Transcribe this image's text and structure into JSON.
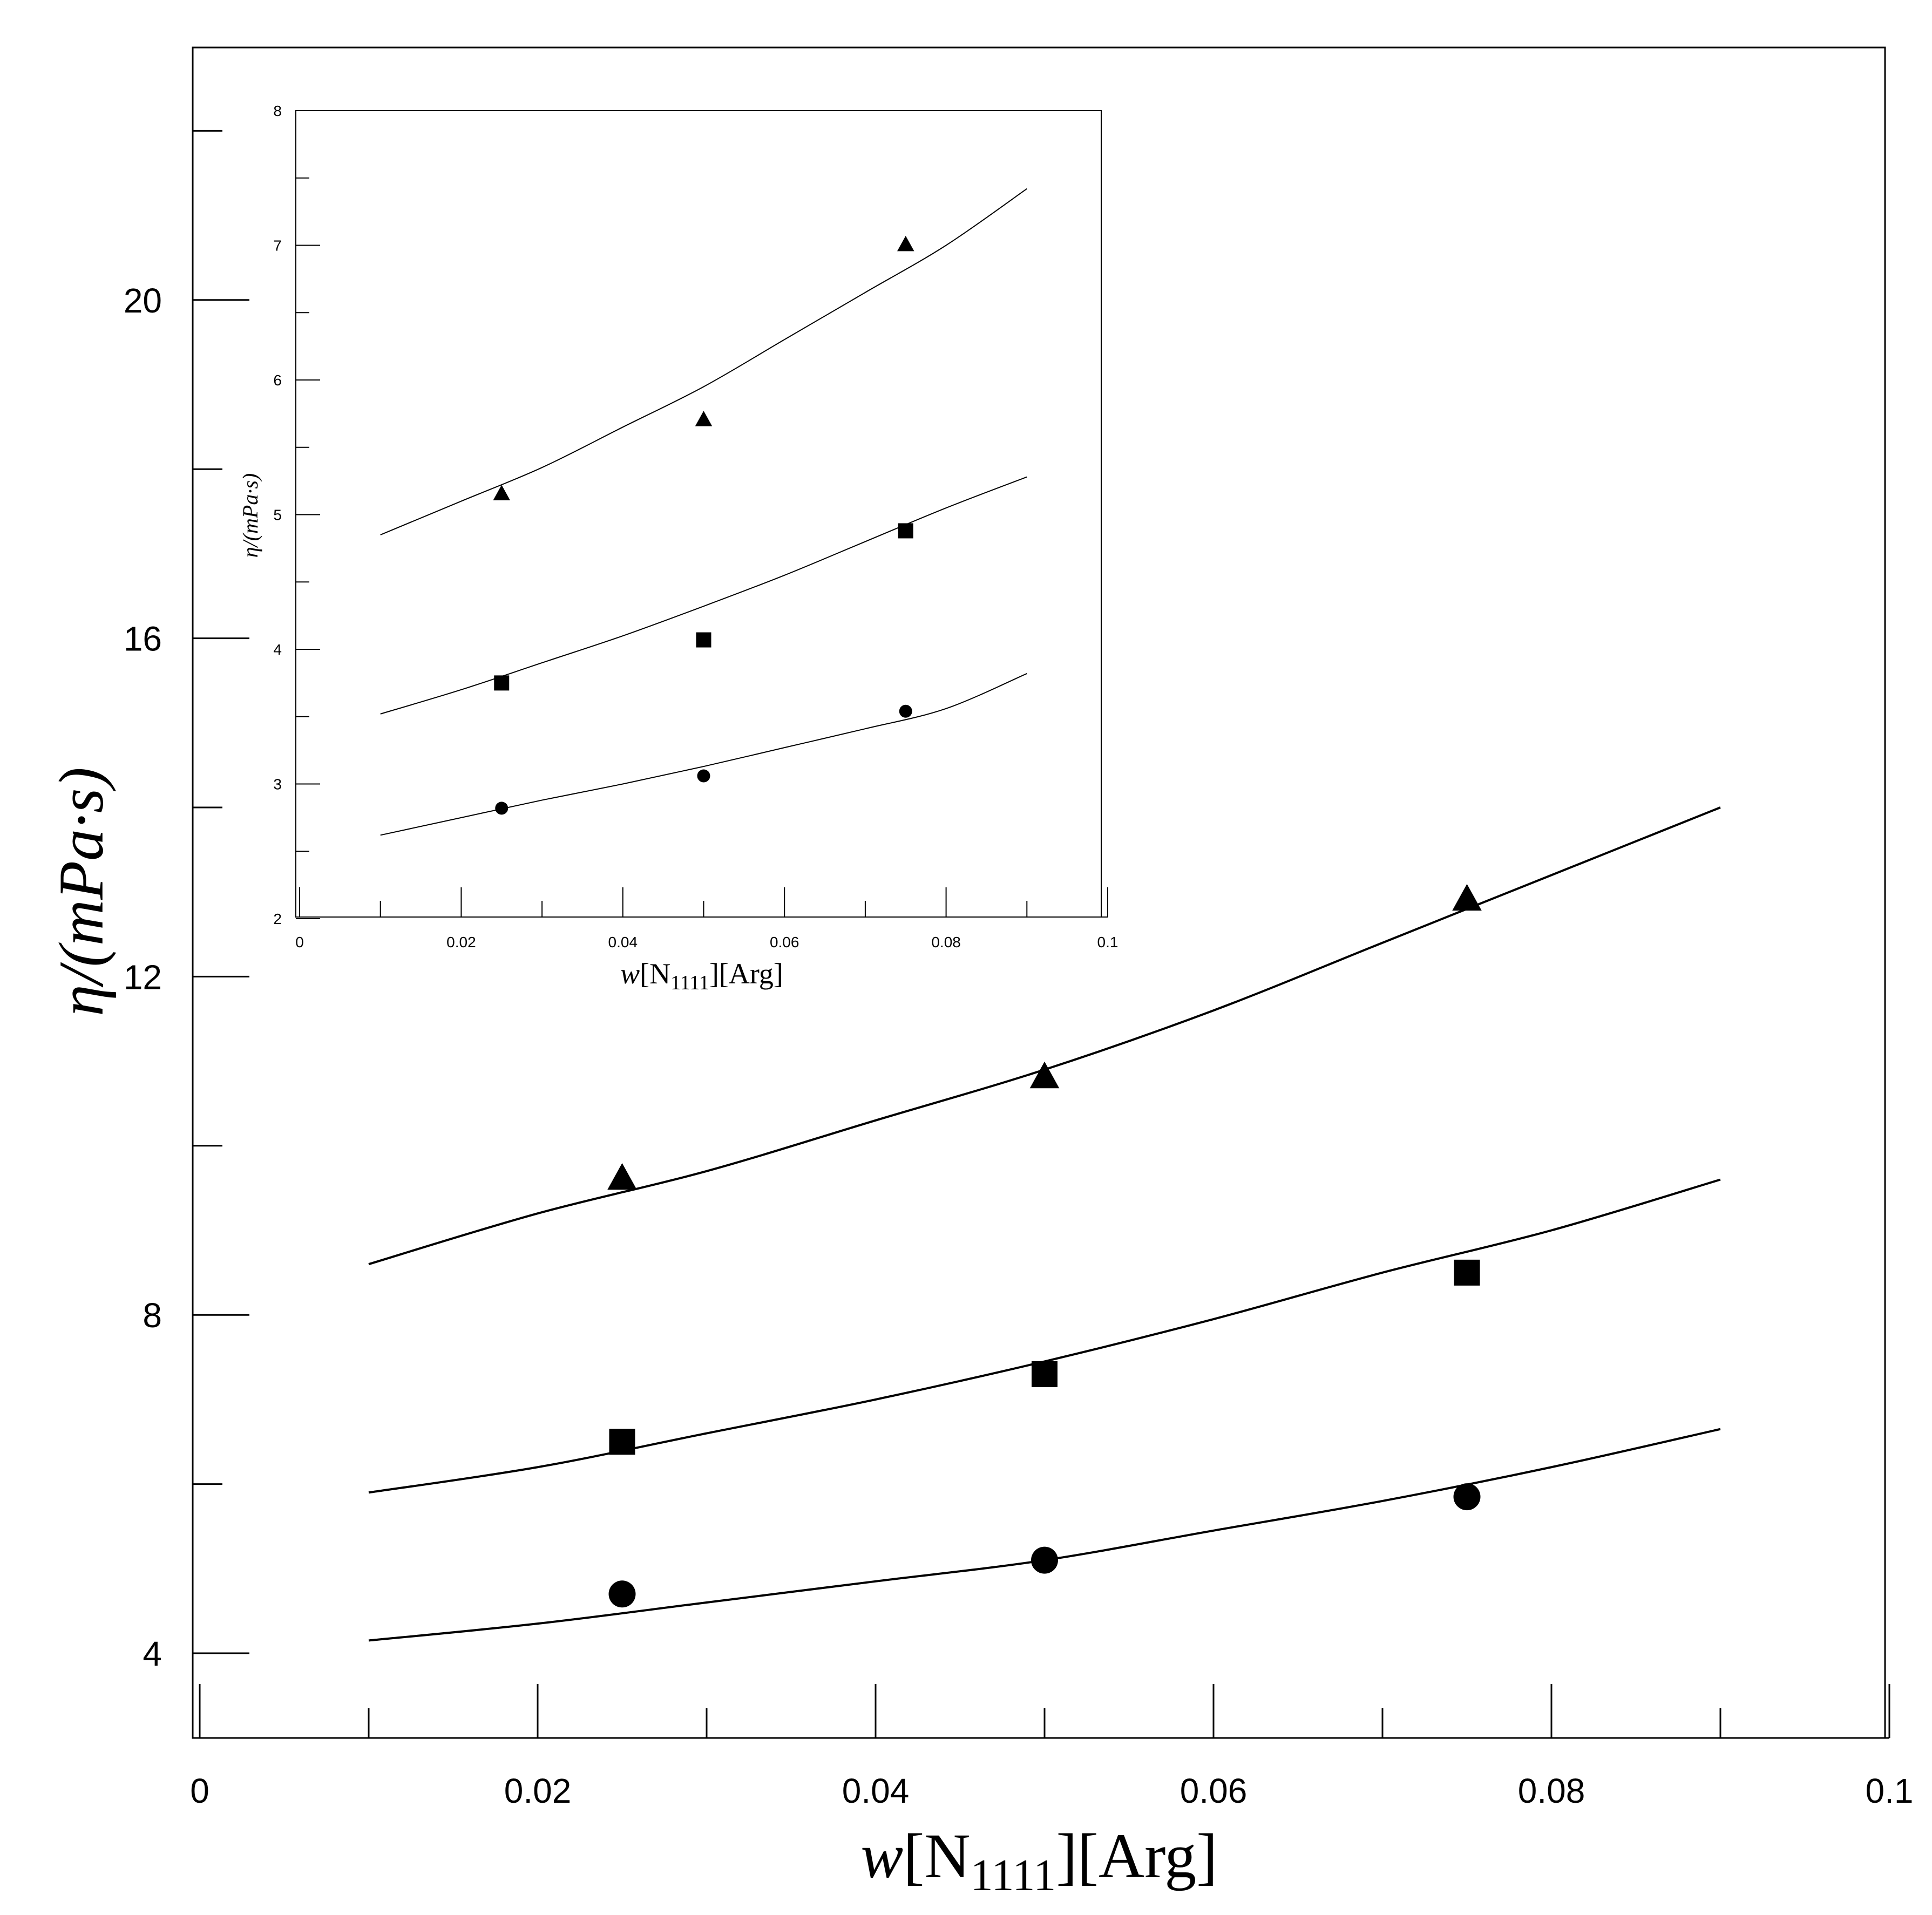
{
  "chart_data": [
    {
      "id": "main",
      "type": "scatter",
      "xlabel": {
        "w": "w",
        "bracket1_open": "[N",
        "sub": "1111",
        "bracket1_close": "]",
        "rest": "[Arg]"
      },
      "ylabel": {
        "eta": "η",
        "rest": "/(",
        "m": "m",
        "Pa": "Pa",
        "dot": "·",
        "s": "s",
        "close": ")"
      },
      "xlim": [
        0,
        0.1
      ],
      "ylim": [
        3,
        23
      ],
      "x_ticks": [
        0,
        0.02,
        0.04,
        0.06,
        0.08,
        0.1
      ],
      "x_tick_labels": [
        "0",
        "0.02",
        "0.04",
        "0.06",
        "0.08",
        "0.1"
      ],
      "x_minor_ticks": [
        0.01,
        0.03,
        0.05,
        0.07,
        0.09
      ],
      "y_ticks": [
        4,
        8,
        12,
        16,
        20
      ],
      "y_tick_labels": [
        "4",
        "8",
        "12",
        "16",
        "20"
      ],
      "y_minor_ticks": [
        6,
        10,
        14,
        18,
        22
      ],
      "grid": false,
      "legend": "none",
      "series": [
        {
          "marker": "triangle",
          "x": [
            0.025,
            0.05,
            0.075
          ],
          "y": [
            9.6,
            10.8,
            12.9
          ],
          "fit": {
            "x": [
              0.01,
              0.02,
              0.03,
              0.04,
              0.05,
              0.06,
              0.07,
              0.08,
              0.09
            ],
            "y": [
              8.6,
              9.2,
              9.7,
              10.3,
              10.9,
              11.6,
              12.4,
              13.2,
              14.0
            ]
          }
        },
        {
          "marker": "square",
          "x": [
            0.025,
            0.05,
            0.075
          ],
          "y": [
            6.5,
            7.3,
            8.5
          ],
          "fit": {
            "x": [
              0.01,
              0.02,
              0.03,
              0.04,
              0.05,
              0.06,
              0.07,
              0.08,
              0.09
            ],
            "y": [
              5.9,
              6.2,
              6.6,
              7.0,
              7.45,
              7.95,
              8.5,
              9.0,
              9.6
            ]
          }
        },
        {
          "marker": "circle",
          "x": [
            0.025,
            0.05,
            0.075
          ],
          "y": [
            4.7,
            5.1,
            5.85
          ],
          "fit": {
            "x": [
              0.01,
              0.02,
              0.03,
              0.04,
              0.05,
              0.06,
              0.07,
              0.08,
              0.09
            ],
            "y": [
              4.15,
              4.35,
              4.6,
              4.85,
              5.1,
              5.45,
              5.8,
              6.2,
              6.65
            ]
          }
        }
      ]
    },
    {
      "id": "inset",
      "type": "scatter",
      "xlabel": {
        "w": "w",
        "bracket1_open": "[N",
        "sub": "1111",
        "bracket1_close": "]",
        "rest": "[Arg]"
      },
      "ylabel": {
        "eta": "η",
        "rest": "/(",
        "m": "m",
        "Pa": "Pa",
        "dot": "·",
        "s": "s",
        "close": ")"
      },
      "xlim": [
        0,
        0.1
      ],
      "ylim": [
        2,
        8
      ],
      "x_ticks": [
        0,
        0.02,
        0.04,
        0.06,
        0.08,
        0.1
      ],
      "x_tick_labels": [
        "0",
        "0.02",
        "0.04",
        "0.06",
        "0.08",
        "0.1"
      ],
      "x_minor_ticks": [
        0.01,
        0.03,
        0.05,
        0.07,
        0.09
      ],
      "y_ticks": [
        2,
        3,
        4,
        5,
        6,
        7,
        8
      ],
      "y_tick_labels": [
        "2",
        "3",
        "4",
        "5",
        "6",
        "7",
        "8"
      ],
      "y_minor_ticks": [
        2.5,
        3.5,
        4.5,
        5.5,
        6.5,
        7.5
      ],
      "grid": false,
      "legend": "none",
      "series": [
        {
          "marker": "triangle",
          "x": [
            0.025,
            0.05,
            0.075
          ],
          "y": [
            5.15,
            5.7,
            7.0
          ],
          "fit": {
            "x": [
              0.01,
              0.02,
              0.03,
              0.04,
              0.05,
              0.06,
              0.07,
              0.08,
              0.09
            ],
            "y": [
              4.85,
              5.1,
              5.35,
              5.65,
              5.95,
              6.3,
              6.65,
              7.0,
              7.42
            ]
          }
        },
        {
          "marker": "square",
          "x": [
            0.025,
            0.05,
            0.075
          ],
          "y": [
            3.75,
            4.07,
            4.88
          ],
          "fit": {
            "x": [
              0.01,
              0.02,
              0.03,
              0.04,
              0.05,
              0.06,
              0.07,
              0.08,
              0.09
            ],
            "y": [
              3.52,
              3.7,
              3.9,
              4.1,
              4.32,
              4.55,
              4.8,
              5.05,
              5.28
            ]
          }
        },
        {
          "marker": "circle",
          "x": [
            0.025,
            0.05,
            0.075
          ],
          "y": [
            2.82,
            3.06,
            3.54
          ],
          "fit": {
            "x": [
              0.01,
              0.02,
              0.03,
              0.04,
              0.05,
              0.06,
              0.07,
              0.08,
              0.09
            ],
            "y": [
              2.62,
              2.75,
              2.88,
              3.0,
              3.13,
              3.27,
              3.41,
              3.56,
              3.82
            ]
          }
        }
      ]
    }
  ]
}
